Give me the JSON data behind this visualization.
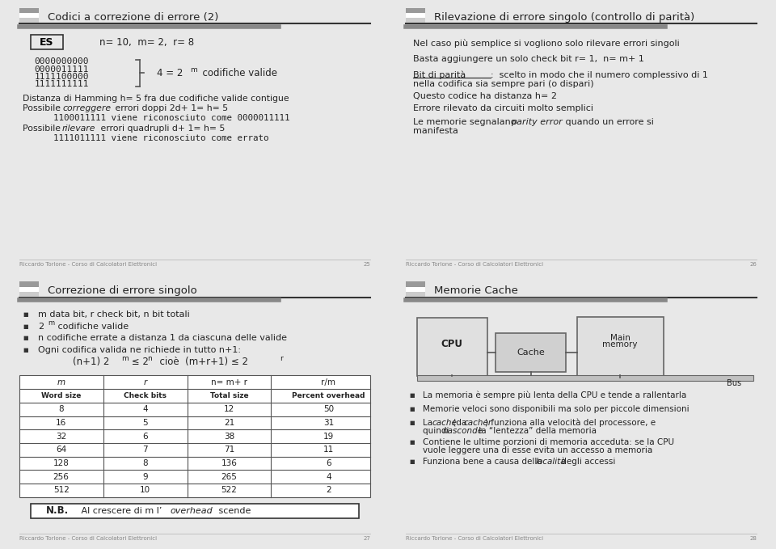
{
  "bg_color": "#e8e8e8",
  "panel_bg": "#ffffff",
  "footer_text": "Riccardo Torlone - Corso di Calcolatori Elettronici",
  "pages": [
    "25",
    "26",
    "27",
    "28"
  ],
  "titles": [
    "Codici a correzione di errore (2)",
    "Rilevazione di errore singolo (controllo di parità)",
    "Correzione di errore singolo",
    "Memorie Cache"
  ],
  "table_headers1": [
    "m",
    "r",
    "n= m+ r",
    "r/m"
  ],
  "table_headers2": [
    "Word size",
    "Check bits",
    "Total size",
    "Percent overhead"
  ],
  "table_data": [
    [
      8,
      4,
      12,
      50
    ],
    [
      16,
      5,
      21,
      31
    ],
    [
      32,
      6,
      38,
      19
    ],
    [
      64,
      7,
      71,
      11
    ],
    [
      128,
      8,
      136,
      6
    ],
    [
      256,
      9,
      265,
      4
    ],
    [
      512,
      10,
      522,
      2
    ]
  ]
}
